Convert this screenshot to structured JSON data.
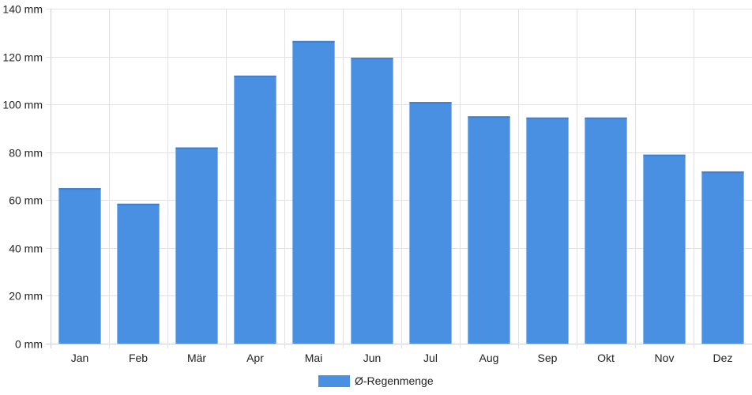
{
  "chart_data": {
    "type": "bar",
    "categories": [
      "Jan",
      "Feb",
      "Mär",
      "Apr",
      "Mai",
      "Jun",
      "Jul",
      "Aug",
      "Sep",
      "Okt",
      "Nov",
      "Dez"
    ],
    "series": [
      {
        "name": "Ø-Regenmenge",
        "color": "#4a90e2",
        "values": [
          65,
          58.5,
          82,
          112,
          126.5,
          119.5,
          101,
          95,
          94.5,
          94.5,
          79,
          72
        ]
      }
    ],
    "y_ticks": [
      0,
      20,
      40,
      60,
      80,
      100,
      120,
      140
    ],
    "y_unit": "mm",
    "ylim": [
      0,
      140
    ],
    "grid": true,
    "legend": "bottom-center",
    "title": "",
    "xlabel": "",
    "ylabel": ""
  }
}
